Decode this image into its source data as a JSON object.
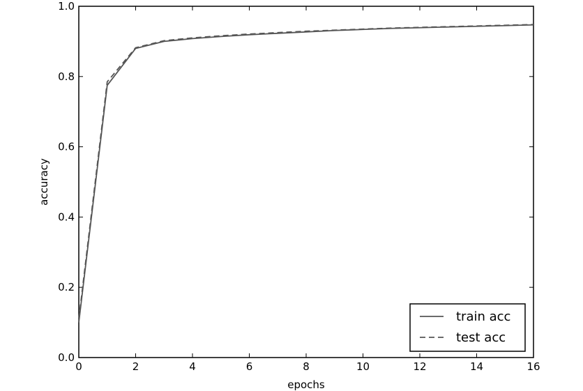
{
  "chart_data": {
    "type": "line",
    "title": "",
    "xlabel": "epochs",
    "ylabel": "accuracy",
    "xlim": [
      0,
      16
    ],
    "ylim": [
      0.0,
      1.0
    ],
    "xticks": [
      0,
      2,
      4,
      6,
      8,
      10,
      12,
      14,
      16
    ],
    "xtick_labels": [
      "0",
      "2",
      "4",
      "6",
      "8",
      "10",
      "12",
      "14",
      "16"
    ],
    "yticks": [
      0.0,
      0.2,
      0.4,
      0.6,
      0.8,
      1.0
    ],
    "ytick_labels": [
      "0.0",
      "0.2",
      "0.4",
      "0.6",
      "0.8",
      "1.0"
    ],
    "grid": false,
    "legend_position": "lower-right",
    "series": [
      {
        "name": "train acc",
        "style": "solid",
        "color": "#555555",
        "x": [
          0,
          1,
          2,
          3,
          4,
          5,
          6,
          7,
          8,
          9,
          10,
          11,
          12,
          13,
          14,
          15,
          16
        ],
        "y": [
          0.1,
          0.775,
          0.88,
          0.9,
          0.908,
          0.914,
          0.919,
          0.923,
          0.927,
          0.931,
          0.934,
          0.937,
          0.939,
          0.941,
          0.943,
          0.945,
          0.947
        ]
      },
      {
        "name": "test acc",
        "style": "dashed",
        "color": "#555555",
        "x": [
          0,
          1,
          2,
          3,
          4,
          5,
          6,
          7,
          8,
          9,
          10,
          11,
          12,
          13,
          14,
          15,
          16
        ],
        "y": [
          0.11,
          0.785,
          0.882,
          0.902,
          0.91,
          0.916,
          0.921,
          0.925,
          0.929,
          0.932,
          0.935,
          0.938,
          0.94,
          0.942,
          0.944,
          0.946,
          0.948
        ]
      }
    ]
  }
}
